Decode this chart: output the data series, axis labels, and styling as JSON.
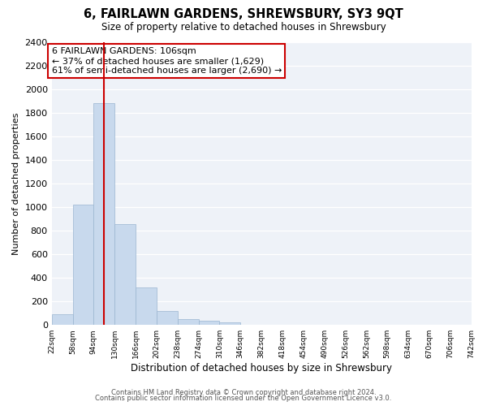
{
  "title": "6, FAIRLAWN GARDENS, SHREWSBURY, SY3 9QT",
  "subtitle": "Size of property relative to detached houses in Shrewsbury",
  "xlabel": "Distribution of detached houses by size in Shrewsbury",
  "ylabel": "Number of detached properties",
  "bin_labels": [
    "22sqm",
    "58sqm",
    "94sqm",
    "130sqm",
    "166sqm",
    "202sqm",
    "238sqm",
    "274sqm",
    "310sqm",
    "346sqm",
    "382sqm",
    "418sqm",
    "454sqm",
    "490sqm",
    "526sqm",
    "562sqm",
    "598sqm",
    "634sqm",
    "670sqm",
    "706sqm",
    "742sqm"
  ],
  "bar_values": [
    90,
    1020,
    1880,
    855,
    320,
    115,
    50,
    35,
    25,
    0,
    0,
    0,
    0,
    0,
    0,
    0,
    0,
    0,
    0,
    0
  ],
  "bar_color": "#c8d9ed",
  "bar_edge_color": "#9ab5d0",
  "vline_color": "#cc0000",
  "annotation_title": "6 FAIRLAWN GARDENS: 106sqm",
  "annotation_line1": "← 37% of detached houses are smaller (1,629)",
  "annotation_line2": "61% of semi-detached houses are larger (2,690) →",
  "annotation_box_color": "#ffffff",
  "annotation_box_edge": "#cc0000",
  "ylim": [
    0,
    2400
  ],
  "yticks": [
    0,
    200,
    400,
    600,
    800,
    1000,
    1200,
    1400,
    1600,
    1800,
    2000,
    2200,
    2400
  ],
  "grid_color": "#d0d8e8",
  "bg_color": "#eef2f8",
  "footer1": "Contains HM Land Registry data © Crown copyright and database right 2024.",
  "footer2": "Contains public sector information licensed under the Open Government Licence v3.0."
}
